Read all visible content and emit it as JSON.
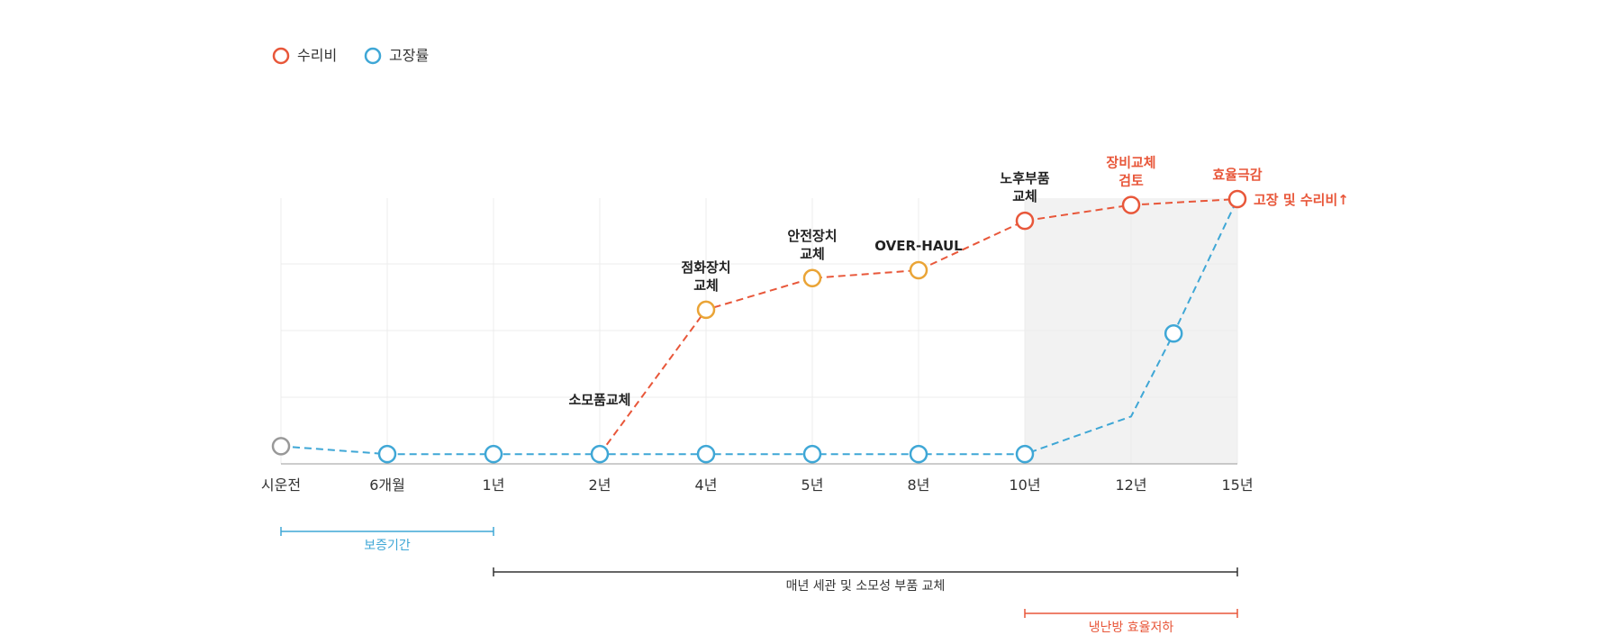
{
  "chart_data": {
    "type": "line",
    "title": "",
    "xlabel": "",
    "ylabel": "",
    "categories": [
      "시운전",
      "6개월",
      "1년",
      "2년",
      "4년",
      "5년",
      "8년",
      "10년",
      "12년",
      "15년"
    ],
    "ylim": [
      0,
      100
    ],
    "grid": true,
    "legend_position": "top-left",
    "highlight_band": {
      "from": "10년",
      "to": "15년",
      "color": "#f2f2f2"
    },
    "series": [
      {
        "name": "수리비",
        "color": "#e8573a",
        "points": [
          {
            "x": 3,
            "y": 35.5
          },
          {
            "x": 4,
            "y": 72
          },
          {
            "x": 5,
            "y": 80
          },
          {
            "x": 6,
            "y": 82
          },
          {
            "x": 7,
            "y": 94.5
          },
          {
            "x": 8,
            "y": 98.5
          },
          {
            "x": 9,
            "y": 100
          }
        ],
        "marker_colors": [
          "",
          "#eaa436",
          "#eaa436",
          "#eaa436",
          "#e8573a",
          "#e8573a",
          "#e8573a"
        ],
        "marker_visible": [
          false,
          true,
          true,
          true,
          true,
          true,
          true
        ]
      },
      {
        "name": "고장률",
        "color": "#3fa7d6",
        "points": [
          {
            "x": 0,
            "y": 37.5
          },
          {
            "x": 1,
            "y": 35.5
          },
          {
            "x": 2,
            "y": 35.5
          },
          {
            "x": 3,
            "y": 35.5
          },
          {
            "x": 4,
            "y": 35.5
          },
          {
            "x": 5,
            "y": 35.5
          },
          {
            "x": 6,
            "y": 35.5
          },
          {
            "x": 7,
            "y": 35.5
          },
          {
            "x": 8,
            "y": 45
          },
          {
            "x": 8.4,
            "y": 66
          },
          {
            "x": 9,
            "y": 100
          }
        ],
        "marker_colors": [
          "#999999",
          "#3fa7d6",
          "#3fa7d6",
          "#3fa7d6",
          "#3fa7d6",
          "#3fa7d6",
          "#3fa7d6",
          "#3fa7d6",
          "",
          "#3fa7d6",
          ""
        ],
        "marker_visible": [
          true,
          true,
          true,
          true,
          true,
          true,
          true,
          true,
          false,
          true,
          false
        ]
      }
    ],
    "annotations": [
      {
        "lines": [
          "소모품교체"
        ],
        "x": 3,
        "y": 35.5,
        "color": "#222222"
      },
      {
        "lines": [
          "점화장치",
          "교체"
        ],
        "x": 4,
        "y": 72,
        "color": "#222222"
      },
      {
        "lines": [
          "안전장치",
          "교체"
        ],
        "x": 5,
        "y": 80,
        "color": "#222222"
      },
      {
        "lines": [
          "OVER-HAUL"
        ],
        "x": 6,
        "y": 82,
        "color": "#222222"
      },
      {
        "lines": [
          "노후부품",
          "교체"
        ],
        "x": 7,
        "y": 94.5,
        "color": "#222222"
      },
      {
        "lines": [
          "장비교체",
          "검토"
        ],
        "x": 8,
        "y": 98.5,
        "color": "#e8573a"
      },
      {
        "lines": [
          "효율극감"
        ],
        "x": 9,
        "y": 100,
        "color": "#e8573a"
      }
    ],
    "end_label": {
      "text": "고장 및 수리비↑",
      "color": "#e8573a"
    },
    "ranges": [
      {
        "label": "보증기간",
        "from": 0,
        "to": 2,
        "color": "#3fa7d6"
      },
      {
        "label": "매년 세관 및 소모성 부품 교체",
        "from": 2,
        "to": 9,
        "color": "#333333"
      },
      {
        "label": "냉난방 효율저하",
        "from": 7,
        "to": 9,
        "color": "#e8573a"
      }
    ]
  }
}
